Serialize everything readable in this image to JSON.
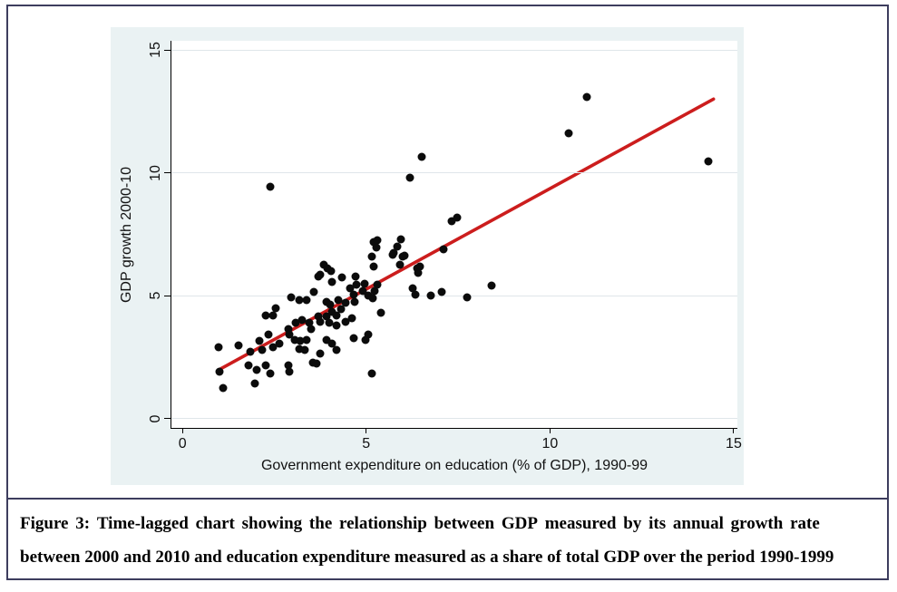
{
  "figure": {
    "caption_line1": "Figure 3: Time-lagged chart showing the relationship between GDP measured by its annual growth rate",
    "caption_line2": "between 2000 and 2010 and education expenditure measured as a share of total GDP over the period 1990-1999"
  },
  "chart_data": {
    "type": "scatter",
    "title": "",
    "xlabel": "Government expenditure on education (% of GDP), 1990-99",
    "ylabel": "GDP growth 2000-10",
    "xlim": [
      -0.3,
      15.1
    ],
    "ylim": [
      -0.37,
      15.37
    ],
    "xticks": [
      0,
      5,
      10,
      15
    ],
    "yticks": [
      0,
      5,
      10,
      15
    ],
    "grid": true,
    "legend": "none",
    "colors": {
      "background": "#eaf2f3",
      "plot_background": "#ffffff",
      "gridline": "#dfe6ea",
      "point": "#0b0b0b",
      "fit_line": "#cc1d1d",
      "axis": "#000000"
    },
    "fit_line": {
      "x_start": 1.0,
      "y_start": 2.0,
      "x_end": 14.45,
      "y_end": 13.0
    },
    "points": [
      [
        2.4,
        9.45
      ],
      [
        6.2,
        9.8
      ],
      [
        6.5,
        10.65
      ],
      [
        10.5,
        11.6
      ],
      [
        11.0,
        13.1
      ],
      [
        14.3,
        10.45
      ],
      [
        7.33,
        8.05
      ],
      [
        7.48,
        8.2
      ],
      [
        5.2,
        7.2
      ],
      [
        5.3,
        7.25
      ],
      [
        5.95,
        7.3
      ],
      [
        5.84,
        7.0
      ],
      [
        5.27,
        6.95
      ],
      [
        5.75,
        6.75
      ],
      [
        5.15,
        6.6
      ],
      [
        6.0,
        6.6
      ],
      [
        5.72,
        6.68
      ],
      [
        6.05,
        6.62
      ],
      [
        6.46,
        6.2
      ],
      [
        5.93,
        6.25
      ],
      [
        6.38,
        6.1
      ],
      [
        6.42,
        5.92
      ],
      [
        5.2,
        6.2
      ],
      [
        7.1,
        6.9
      ],
      [
        3.85,
        6.25
      ],
      [
        3.95,
        6.1
      ],
      [
        4.05,
        6.0
      ],
      [
        3.75,
        5.85
      ],
      [
        4.35,
        5.75
      ],
      [
        4.08,
        5.56
      ],
      [
        3.7,
        5.8
      ],
      [
        4.7,
        5.8
      ],
      [
        4.73,
        5.44
      ],
      [
        4.95,
        5.5
      ],
      [
        5.23,
        5.2
      ],
      [
        5.31,
        5.44
      ],
      [
        5.06,
        5.0
      ],
      [
        5.19,
        4.9
      ],
      [
        4.9,
        5.2
      ],
      [
        3.58,
        5.15
      ],
      [
        3.37,
        4.83
      ],
      [
        3.91,
        4.77
      ],
      [
        4.03,
        4.64
      ],
      [
        4.32,
        4.46
      ],
      [
        4.57,
        5.3
      ],
      [
        4.65,
        5.05
      ],
      [
        6.26,
        5.3
      ],
      [
        6.34,
        5.05
      ],
      [
        7.05,
        5.15
      ],
      [
        6.75,
        5.0
      ],
      [
        7.74,
        4.92
      ],
      [
        8.42,
        5.4
      ],
      [
        2.96,
        4.95
      ],
      [
        3.17,
        4.83
      ],
      [
        4.24,
        4.83
      ],
      [
        4.44,
        4.7
      ],
      [
        4.69,
        4.77
      ],
      [
        2.55,
        4.5
      ],
      [
        2.26,
        4.2
      ],
      [
        2.47,
        4.2
      ],
      [
        3.09,
        3.9
      ],
      [
        3.25,
        4.0
      ],
      [
        3.5,
        3.65
      ],
      [
        3.75,
        3.95
      ],
      [
        3.91,
        4.15
      ],
      [
        4.07,
        4.33
      ],
      [
        4.2,
        4.2
      ],
      [
        3.99,
        3.9
      ],
      [
        4.2,
        3.78
      ],
      [
        4.44,
        3.95
      ],
      [
        4.61,
        4.1
      ],
      [
        3.46,
        3.9
      ],
      [
        3.7,
        4.15
      ],
      [
        5.39,
        4.3
      ],
      [
        4.65,
        3.28
      ],
      [
        5.06,
        3.41
      ],
      [
        4.98,
        3.22
      ],
      [
        0.99,
        2.9
      ],
      [
        1.52,
        2.97
      ],
      [
        1.85,
        2.73
      ],
      [
        2.1,
        3.16
      ],
      [
        2.18,
        2.79
      ],
      [
        2.35,
        3.41
      ],
      [
        2.47,
        2.91
      ],
      [
        2.63,
        3.04
      ],
      [
        2.88,
        3.65
      ],
      [
        2.92,
        3.41
      ],
      [
        3.05,
        3.22
      ],
      [
        3.21,
        3.16
      ],
      [
        3.37,
        3.22
      ],
      [
        3.17,
        2.85
      ],
      [
        3.33,
        2.79
      ],
      [
        3.91,
        3.22
      ],
      [
        4.07,
        3.04
      ],
      [
        3.75,
        2.67
      ],
      [
        4.2,
        2.79
      ],
      [
        3.54,
        2.3
      ],
      [
        3.66,
        2.23
      ],
      [
        1.81,
        2.17
      ],
      [
        2.02,
        1.99
      ],
      [
        2.26,
        2.17
      ],
      [
        2.39,
        1.86
      ],
      [
        1.0,
        1.93
      ],
      [
        1.11,
        1.25
      ],
      [
        1.98,
        1.43
      ],
      [
        2.88,
        2.17
      ],
      [
        2.92,
        1.93
      ],
      [
        5.15,
        1.85
      ]
    ]
  }
}
